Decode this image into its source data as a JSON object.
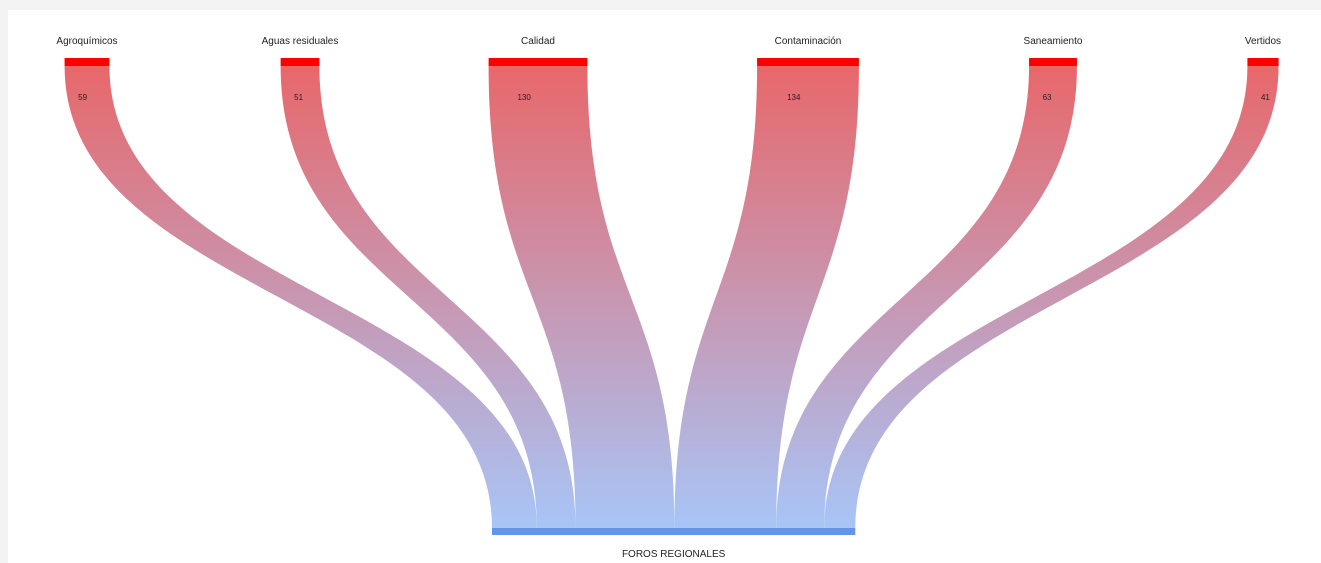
{
  "chart_data": {
    "type": "sankey",
    "sources": [
      {
        "name": "Agroquímicos",
        "value": 59
      },
      {
        "name": "Aguas residuales",
        "value": 51
      },
      {
        "name": "Calidad",
        "value": 130
      },
      {
        "name": "Contaminación",
        "value": 134
      },
      {
        "name": "Saneamiento",
        "value": 63
      },
      {
        "name": "Vertidos",
        "value": 41
      }
    ],
    "target": {
      "name": "FOROS REGIONALES"
    },
    "colors": {
      "source_node": "#ff0000",
      "target_node": "#6495ed",
      "link_top": "#e8676a",
      "link_bottom": "#a8c5f7"
    }
  }
}
